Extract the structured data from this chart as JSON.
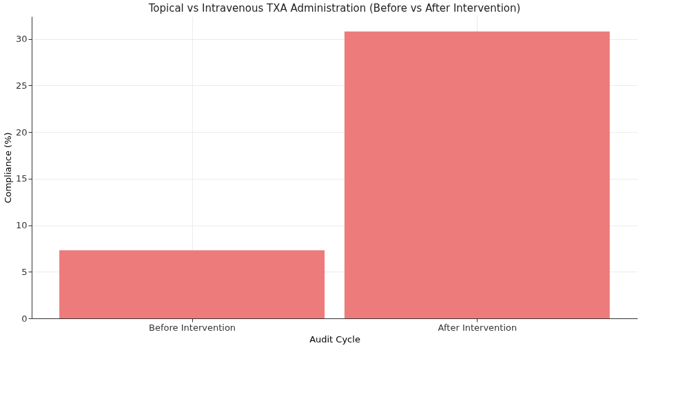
{
  "chart_data": {
    "type": "bar",
    "title": "Topical vs Intravenous TXA Administration (Before vs After Intervention)",
    "xlabel": "Audit Cycle",
    "ylabel": "Compliance (%)",
    "categories": [
      "Before Intervention",
      "After Intervention"
    ],
    "values": [
      7.3,
      30.8
    ],
    "color": "#ee7b7b",
    "ylim": [
      0,
      32.4
    ],
    "yticks": [
      0,
      5,
      10,
      15,
      20,
      25,
      30
    ],
    "grid": true
  }
}
